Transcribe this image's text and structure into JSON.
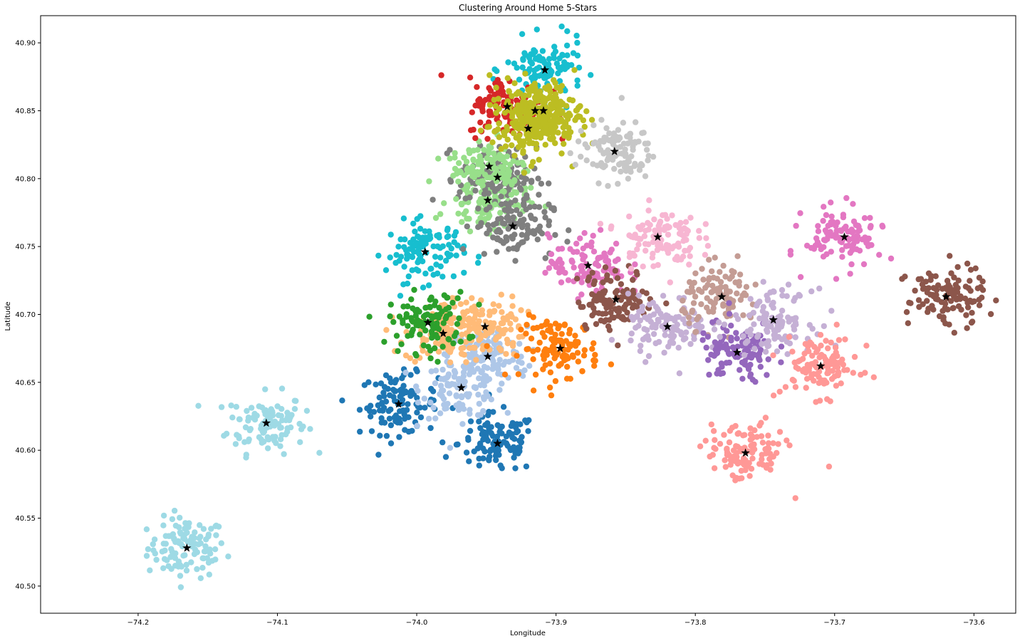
{
  "chart_data": {
    "type": "scatter",
    "title": "Clustering Around Home 5-Stars",
    "xlabel": "Longitude",
    "ylabel": "Latitude",
    "xlim": [
      -74.27,
      -73.57
    ],
    "ylim": [
      40.48,
      40.92
    ],
    "x_ticks": [
      -74.2,
      -74.1,
      -74.0,
      -73.9,
      -73.8,
      -73.7,
      -73.6
    ],
    "x_tick_labels": [
      "−74.2",
      "−74.1",
      "−74.0",
      "−73.9",
      "−73.8",
      "−73.7",
      "−73.6"
    ],
    "y_ticks": [
      40.5,
      40.55,
      40.6,
      40.65,
      40.7,
      40.75,
      40.8,
      40.85,
      40.9
    ],
    "y_tick_labels": [
      "40.50",
      "40.55",
      "40.60",
      "40.65",
      "40.70",
      "40.75",
      "40.80",
      "40.85",
      "40.90"
    ],
    "grid": false,
    "clusters": [
      {
        "color": "#9edae5",
        "center": [
          -74.165,
          40.528
        ]
      },
      {
        "color": "#9edae5",
        "center": [
          -74.108,
          40.62
        ]
      },
      {
        "color": "#1f77b4",
        "center": [
          -74.013,
          40.634
        ]
      },
      {
        "color": "#1f77b4",
        "center": [
          -73.942,
          40.605
        ]
      },
      {
        "color": "#aec7e8",
        "center": [
          -73.968,
          40.646
        ]
      },
      {
        "color": "#aec7e8",
        "center": [
          -73.949,
          40.669
        ]
      },
      {
        "color": "#ffbb78",
        "center": [
          -73.981,
          40.686
        ]
      },
      {
        "color": "#ffbb78",
        "center": [
          -73.951,
          40.691
        ]
      },
      {
        "color": "#2ca02c",
        "center": [
          -73.992,
          40.694
        ]
      },
      {
        "color": "#ff7f0e",
        "center": [
          -73.897,
          40.675
        ]
      },
      {
        "color": "#17becf",
        "center": [
          -73.994,
          40.746
        ]
      },
      {
        "color": "#17becf",
        "center": [
          -73.908,
          40.88
        ]
      },
      {
        "color": "#98df8a",
        "center": [
          -73.949,
          40.784
        ]
      },
      {
        "color": "#7f7f7f",
        "center": [
          -73.931,
          40.765
        ]
      },
      {
        "color": "#7f7f7f",
        "center": [
          -73.942,
          40.801
        ]
      },
      {
        "color": "#98df8a",
        "center": [
          -73.948,
          40.809
        ]
      },
      {
        "color": "#d62728",
        "center": [
          -73.935,
          40.853
        ]
      },
      {
        "color": "#bcbd22",
        "center": [
          -73.915,
          40.85
        ]
      },
      {
        "color": "#bcbd22",
        "center": [
          -73.909,
          40.85
        ]
      },
      {
        "color": "#bcbd22",
        "center": [
          -73.92,
          40.837
        ]
      },
      {
        "color": "#c7c7c7",
        "center": [
          -73.858,
          40.82
        ]
      },
      {
        "color": "#e377c2",
        "center": [
          -73.877,
          40.736
        ]
      },
      {
        "color": "#8c564b",
        "center": [
          -73.857,
          40.711
        ]
      },
      {
        "color": "#f7b6d2",
        "center": [
          -73.827,
          40.757
        ]
      },
      {
        "color": "#c5b0d5",
        "center": [
          -73.82,
          40.691
        ]
      },
      {
        "color": "#c49c94",
        "center": [
          -73.781,
          40.713
        ]
      },
      {
        "color": "#9467bd",
        "center": [
          -73.77,
          40.672
        ]
      },
      {
        "color": "#c5b0d5",
        "center": [
          -73.744,
          40.696
        ]
      },
      {
        "color": "#ff9896",
        "center": [
          -73.71,
          40.662
        ]
      },
      {
        "color": "#ff9896",
        "center": [
          -73.764,
          40.598
        ]
      },
      {
        "color": "#e377c2",
        "center": [
          -73.693,
          40.757
        ]
      },
      {
        "color": "#8c564b",
        "center": [
          -73.62,
          40.713
        ]
      }
    ]
  }
}
